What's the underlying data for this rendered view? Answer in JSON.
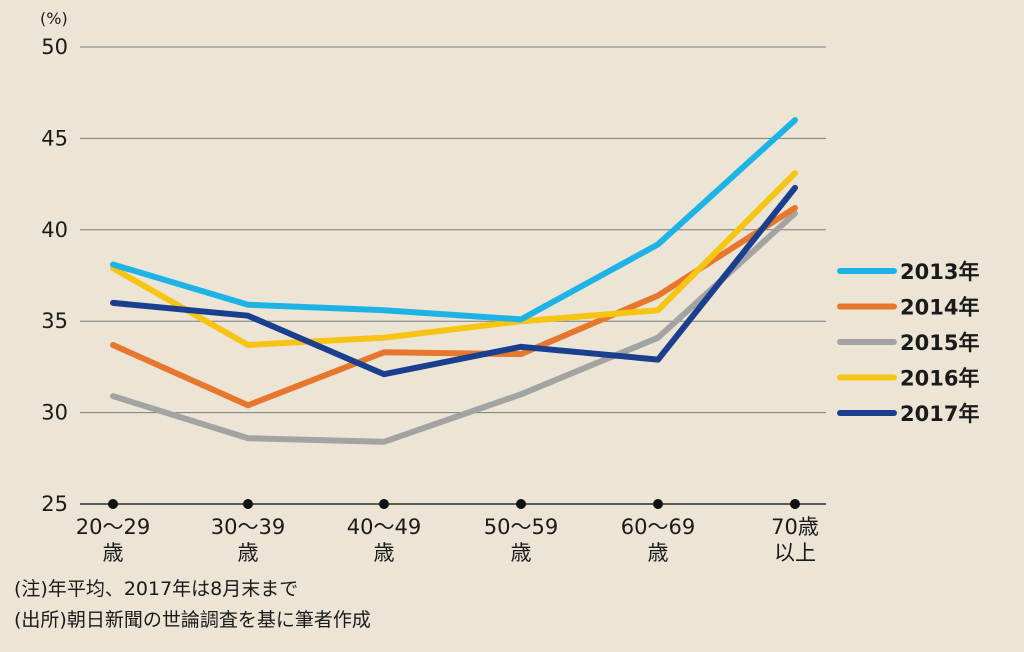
{
  "chart_data": {
    "type": "line",
    "y_unit": "(%)",
    "ylim": [
      25,
      50
    ],
    "yticks": [
      25,
      30,
      35,
      40,
      45,
      50
    ],
    "grid": true,
    "legend_position": "right",
    "categories": [
      [
        "20〜29",
        "歳"
      ],
      [
        "30〜39",
        "歳"
      ],
      [
        "40〜49",
        "歳"
      ],
      [
        "50〜59",
        "歳"
      ],
      [
        "60〜69",
        "歳"
      ],
      [
        "70歳",
        "以上"
      ]
    ],
    "series": [
      {
        "name": "2013年",
        "color": "#1eb3e6",
        "values": [
          38.1,
          35.9,
          35.6,
          35.1,
          39.2,
          46.0
        ]
      },
      {
        "name": "2014年",
        "color": "#e8772e",
        "values": [
          33.7,
          30.4,
          33.3,
          33.2,
          36.4,
          41.2
        ]
      },
      {
        "name": "2015年",
        "color": "#a3a3a3",
        "values": [
          30.9,
          28.6,
          28.4,
          31.0,
          34.1,
          40.9
        ]
      },
      {
        "name": "2016年",
        "color": "#f6c413",
        "values": [
          37.9,
          33.7,
          34.1,
          35.0,
          35.6,
          43.1
        ]
      },
      {
        "name": "2017年",
        "color": "#1a3f8e",
        "values": [
          36.0,
          35.3,
          32.1,
          33.6,
          32.9,
          42.3
        ]
      }
    ]
  },
  "notes": {
    "note1": "(注)年平均、2017年は8月末まで",
    "note2": "(出所)朝日新聞の世論調査を基に筆者作成"
  }
}
